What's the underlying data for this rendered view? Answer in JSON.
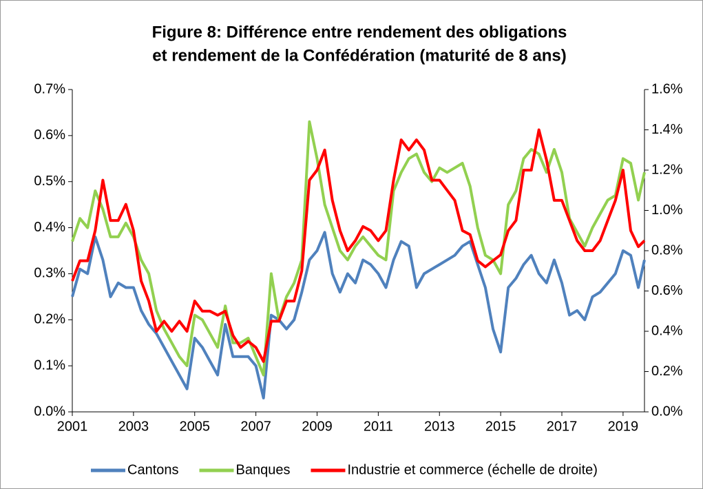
{
  "chart_data": {
    "type": "line",
    "title": "Figure 8: Différence entre rendement des obligations",
    "subtitle": "et rendement de la Confédération (maturité de 8 ans)",
    "x": [
      2001,
      2001.25,
      2001.5,
      2001.75,
      2002,
      2002.25,
      2002.5,
      2002.75,
      2003,
      2003.25,
      2003.5,
      2003.75,
      2004,
      2004.25,
      2004.5,
      2004.75,
      2005,
      2005.25,
      2005.5,
      2005.75,
      2006,
      2006.25,
      2006.5,
      2006.75,
      2007,
      2007.25,
      2007.5,
      2007.75,
      2008,
      2008.25,
      2008.5,
      2008.75,
      2009,
      2009.25,
      2009.5,
      2009.75,
      2010,
      2010.25,
      2010.5,
      2010.75,
      2011,
      2011.25,
      2011.5,
      2011.75,
      2012,
      2012.25,
      2012.5,
      2012.75,
      2013,
      2013.25,
      2013.5,
      2013.75,
      2014,
      2014.25,
      2014.5,
      2014.75,
      2015,
      2015.25,
      2015.5,
      2015.75,
      2016,
      2016.25,
      2016.5,
      2016.75,
      2017,
      2017.25,
      2017.5,
      2017.75,
      2018,
      2018.25,
      2018.5,
      2018.75,
      2019,
      2019.25,
      2019.5,
      2019.7
    ],
    "series": [
      {
        "name": "Cantons",
        "color": "#4f81bd",
        "axis": "y",
        "values": [
          0.25,
          0.31,
          0.3,
          0.38,
          0.33,
          0.25,
          0.28,
          0.27,
          0.27,
          0.22,
          0.19,
          0.17,
          0.14,
          0.11,
          0.08,
          0.05,
          0.16,
          0.14,
          0.11,
          0.08,
          0.19,
          0.12,
          0.12,
          0.12,
          0.1,
          0.03,
          0.21,
          0.2,
          0.18,
          0.2,
          0.26,
          0.33,
          0.35,
          0.39,
          0.3,
          0.26,
          0.3,
          0.28,
          0.33,
          0.32,
          0.3,
          0.27,
          0.33,
          0.37,
          0.36,
          0.27,
          0.3,
          0.31,
          0.32,
          0.33,
          0.34,
          0.36,
          0.37,
          0.32,
          0.27,
          0.18,
          0.13,
          0.27,
          0.29,
          0.32,
          0.34,
          0.3,
          0.28,
          0.33,
          0.28,
          0.21,
          0.22,
          0.2,
          0.25,
          0.26,
          0.28,
          0.3,
          0.35,
          0.34,
          0.27,
          0.33
        ]
      },
      {
        "name": "Banques",
        "color": "#92d050",
        "axis": "y",
        "values": [
          0.37,
          0.42,
          0.4,
          0.48,
          0.44,
          0.38,
          0.38,
          0.41,
          0.38,
          0.33,
          0.3,
          0.22,
          0.18,
          0.15,
          0.12,
          0.1,
          0.21,
          0.2,
          0.17,
          0.14,
          0.23,
          0.15,
          0.15,
          0.16,
          0.12,
          0.08,
          0.3,
          0.2,
          0.25,
          0.28,
          0.33,
          0.63,
          0.55,
          0.45,
          0.4,
          0.35,
          0.33,
          0.36,
          0.38,
          0.36,
          0.34,
          0.33,
          0.48,
          0.52,
          0.55,
          0.56,
          0.52,
          0.5,
          0.53,
          0.52,
          0.53,
          0.54,
          0.49,
          0.4,
          0.34,
          0.33,
          0.3,
          0.45,
          0.48,
          0.55,
          0.57,
          0.56,
          0.52,
          0.57,
          0.52,
          0.42,
          0.39,
          0.36,
          0.4,
          0.43,
          0.46,
          0.47,
          0.55,
          0.54,
          0.46,
          0.52
        ]
      },
      {
        "name": "Industrie et commerce (échelle de droite)",
        "color": "#ff0000",
        "axis": "y2",
        "values": [
          0.65,
          0.75,
          0.75,
          0.9,
          1.15,
          0.95,
          0.95,
          1.03,
          0.9,
          0.65,
          0.55,
          0.4,
          0.45,
          0.4,
          0.45,
          0.4,
          0.55,
          0.5,
          0.5,
          0.48,
          0.5,
          0.38,
          0.32,
          0.35,
          0.32,
          0.25,
          0.45,
          0.45,
          0.55,
          0.55,
          0.7,
          1.15,
          1.2,
          1.3,
          1.05,
          0.9,
          0.8,
          0.85,
          0.92,
          0.9,
          0.85,
          0.9,
          1.15,
          1.35,
          1.3,
          1.35,
          1.3,
          1.15,
          1.15,
          1.1,
          1.05,
          0.9,
          0.88,
          0.75,
          0.72,
          0.75,
          0.78,
          0.9,
          0.95,
          1.2,
          1.2,
          1.4,
          1.25,
          1.05,
          1.05,
          0.95,
          0.85,
          0.8,
          0.8,
          0.85,
          0.95,
          1.05,
          1.2,
          0.9,
          0.82,
          0.85
        ]
      }
    ],
    "xlim": [
      2001,
      2019.7
    ],
    "xticks": [
      2001,
      2003,
      2005,
      2007,
      2009,
      2011,
      2013,
      2015,
      2017,
      2019
    ],
    "ylim": [
      0,
      0.7
    ],
    "yticks": [
      {
        "value": 0,
        "label": "0.0%"
      },
      {
        "value": 0.1,
        "label": "0.1%"
      },
      {
        "value": 0.2,
        "label": "0.2%"
      },
      {
        "value": 0.3,
        "label": "0.3%"
      },
      {
        "value": 0.4,
        "label": "0.4%"
      },
      {
        "value": 0.5,
        "label": "0.5%"
      },
      {
        "value": 0.6,
        "label": "0.6%"
      },
      {
        "value": 0.7,
        "label": "0.7%"
      }
    ],
    "y2lim": [
      0,
      1.6
    ],
    "y2ticks": [
      {
        "value": 0,
        "label": "0.0%"
      },
      {
        "value": 0.2,
        "label": "0.2%"
      },
      {
        "value": 0.4,
        "label": "0.4%"
      },
      {
        "value": 0.6,
        "label": "0.6%"
      },
      {
        "value": 0.8,
        "label": "0.8%"
      },
      {
        "value": 1.0,
        "label": "1.0%"
      },
      {
        "value": 1.2,
        "label": "1.2%"
      },
      {
        "value": 1.4,
        "label": "1.4%"
      },
      {
        "value": 1.6,
        "label": "1.6%"
      }
    ],
    "legend": "bottom"
  }
}
